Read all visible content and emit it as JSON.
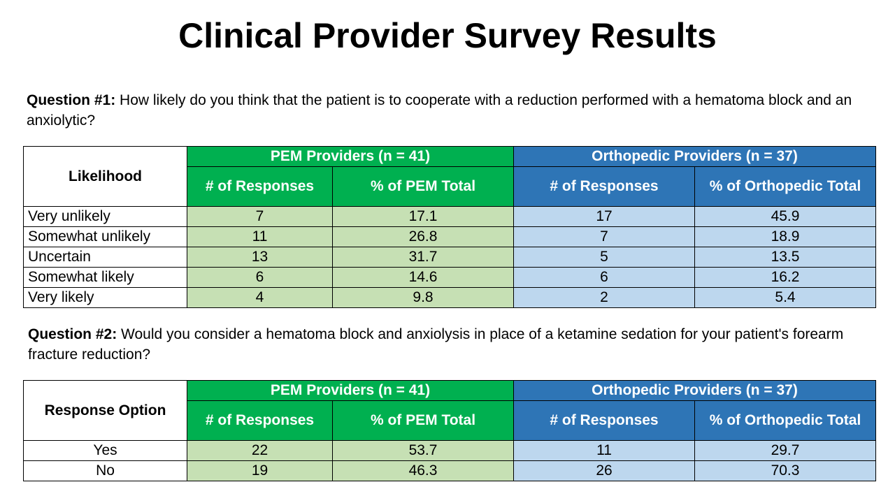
{
  "title": "Clinical Provider Survey Results",
  "q1": {
    "label": "Question #1:",
    "text": " How likely do you think that the patient is to cooperate with a reduction performed with a hematoma block and an anxiolytic?"
  },
  "q2": {
    "label": "Question #2:",
    "text": " Would you consider a hematoma block and anxiolysis in place of a ketamine sedation for your patient's forearm fracture reduction?"
  },
  "table1": {
    "corner": "Likelihood",
    "pem_group": "PEM Providers (n = 41)",
    "ortho_group": "Orthopedic Providers (n = 37)",
    "pem_count_header": "# of Responses",
    "pem_pct_header": "% of PEM Total",
    "ortho_count_header": "# of Responses",
    "ortho_pct_header": "% of Orthopedic Total",
    "rows": [
      {
        "label": "Very unlikely",
        "pem_n": "7",
        "pem_pct": "17.1",
        "ortho_n": "17",
        "ortho_pct": "45.9"
      },
      {
        "label": "Somewhat unlikely",
        "pem_n": "11",
        "pem_pct": "26.8",
        "ortho_n": "7",
        "ortho_pct": "18.9"
      },
      {
        "label": "Uncertain",
        "pem_n": "13",
        "pem_pct": "31.7",
        "ortho_n": "5",
        "ortho_pct": "13.5"
      },
      {
        "label": "Somewhat likely",
        "pem_n": "6",
        "pem_pct": "14.6",
        "ortho_n": "6",
        "ortho_pct": "16.2"
      },
      {
        "label": "Very likely",
        "pem_n": "4",
        "pem_pct": "9.8",
        "ortho_n": "2",
        "ortho_pct": "5.4"
      }
    ]
  },
  "table2": {
    "corner": "Response Option",
    "pem_group": "PEM Providers (n = 41)",
    "ortho_group": "Orthopedic Providers (n = 37)",
    "pem_count_header": "# of Responses",
    "pem_pct_header": "% of PEM Total",
    "ortho_count_header": "# of Responses",
    "ortho_pct_header": "% of Orthopedic Total",
    "rows": [
      {
        "label": "Yes",
        "pem_n": "22",
        "pem_pct": "53.7",
        "ortho_n": "11",
        "ortho_pct": "29.7"
      },
      {
        "label": "No",
        "pem_n": "19",
        "pem_pct": "46.3",
        "ortho_n": "26",
        "ortho_pct": "70.3"
      }
    ]
  },
  "colors": {
    "pem_header": "#00b050",
    "ortho_header": "#2e75b6",
    "pem_cell": "#c6e0b4",
    "ortho_cell": "#bdd7ee"
  }
}
